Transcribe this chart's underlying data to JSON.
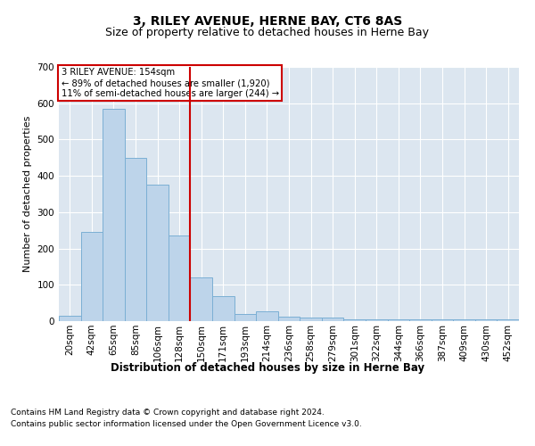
{
  "title": "3, RILEY AVENUE, HERNE BAY, CT6 8AS",
  "subtitle": "Size of property relative to detached houses in Herne Bay",
  "xlabel": "Distribution of detached houses by size in Herne Bay",
  "ylabel": "Number of detached properties",
  "categories": [
    "20sqm",
    "42sqm",
    "65sqm",
    "85sqm",
    "106sqm",
    "128sqm",
    "150sqm",
    "171sqm",
    "193sqm",
    "214sqm",
    "236sqm",
    "258sqm",
    "279sqm",
    "301sqm",
    "322sqm",
    "344sqm",
    "366sqm",
    "387sqm",
    "409sqm",
    "430sqm",
    "452sqm"
  ],
  "bar_values": [
    15,
    245,
    585,
    450,
    375,
    235,
    120,
    68,
    20,
    28,
    12,
    9,
    9,
    5,
    5,
    5,
    5,
    5,
    5,
    5,
    5
  ],
  "bar_color": "#bdd4ea",
  "bar_edge_color": "#7bafd4",
  "background_color": "#dce6f0",
  "grid_color": "#ffffff",
  "vline_x_index": 6,
  "vline_color": "#cc0000",
  "annotation_text": "3 RILEY AVENUE: 154sqm\n← 89% of detached houses are smaller (1,920)\n11% of semi-detached houses are larger (244) →",
  "annotation_box_color": "#cc0000",
  "ylim": [
    0,
    700
  ],
  "yticks": [
    0,
    100,
    200,
    300,
    400,
    500,
    600,
    700
  ],
  "footer_line1": "Contains HM Land Registry data © Crown copyright and database right 2024.",
  "footer_line2": "Contains public sector information licensed under the Open Government Licence v3.0.",
  "title_fontsize": 10,
  "subtitle_fontsize": 9,
  "xlabel_fontsize": 8.5,
  "ylabel_fontsize": 8,
  "tick_fontsize": 7.5,
  "footer_fontsize": 6.5
}
